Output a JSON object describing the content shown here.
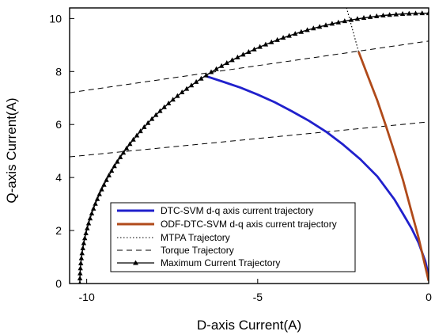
{
  "chart_data": {
    "type": "line",
    "title": "",
    "xlabel": "D-axis Current(A)",
    "ylabel": "Q-axis Current(A)",
    "xlim": [
      -10.5,
      0
    ],
    "ylim": [
      0,
      10.4
    ],
    "x_ticks": [
      -10,
      -5,
      0
    ],
    "x_tick_labels": [
      "-10",
      "-5",
      "0"
    ],
    "y_ticks": [
      0,
      2,
      4,
      6,
      8,
      10
    ],
    "y_tick_labels": [
      "0",
      "2",
      "4",
      "6",
      "8",
      "10"
    ],
    "grid": false,
    "legend_position": "bottom-center",
    "series": [
      {
        "name": "DTC-SVM d-q axis current trajectory",
        "color": "#2020cc",
        "style": "solid-thick",
        "x": [
          -6.5,
          -6.0,
          -5.5,
          -5.0,
          -4.5,
          -4.0,
          -3.5,
          -3.0,
          -2.5,
          -2.0,
          -1.5,
          -1.0,
          -0.75,
          -0.5,
          -0.3,
          -0.1,
          0.0
        ],
        "y": [
          7.82,
          7.61,
          7.39,
          7.13,
          6.84,
          6.5,
          6.14,
          5.73,
          5.24,
          4.69,
          4.04,
          3.17,
          2.63,
          2.08,
          1.55,
          0.85,
          0.3
        ]
      },
      {
        "name": "ODF-DTC-SVM d-q axis current trajectory",
        "color": "#b04a1a",
        "style": "solid-thick",
        "x": [
          -2.05,
          -1.8,
          -1.5,
          -1.25,
          -1.0,
          -0.75,
          -0.5,
          -0.3,
          -0.1,
          0.0
        ],
        "y": [
          8.75,
          7.9,
          6.9,
          5.95,
          4.95,
          3.9,
          2.7,
          1.75,
          0.65,
          0.1
        ]
      },
      {
        "name": "MTPA Trajectory",
        "color": "#000000",
        "style": "dotted",
        "x": [
          -2.05,
          -2.4
        ],
        "y": [
          8.75,
          10.4
        ]
      },
      {
        "name": "Torque Trajectory",
        "color": "#000000",
        "style": "dashed",
        "lines": [
          {
            "x": [
              -10.5,
              0
            ],
            "y": [
              7.2,
              9.15
            ]
          },
          {
            "x": [
              -10.5,
              0
            ],
            "y": [
              4.78,
              6.1
            ]
          }
        ]
      },
      {
        "name": "Maximum Current Trajectory",
        "color": "#000000",
        "style": "solid-triangle-markers",
        "radius": 10.2,
        "x_range": [
          -10.2,
          0
        ]
      }
    ]
  }
}
